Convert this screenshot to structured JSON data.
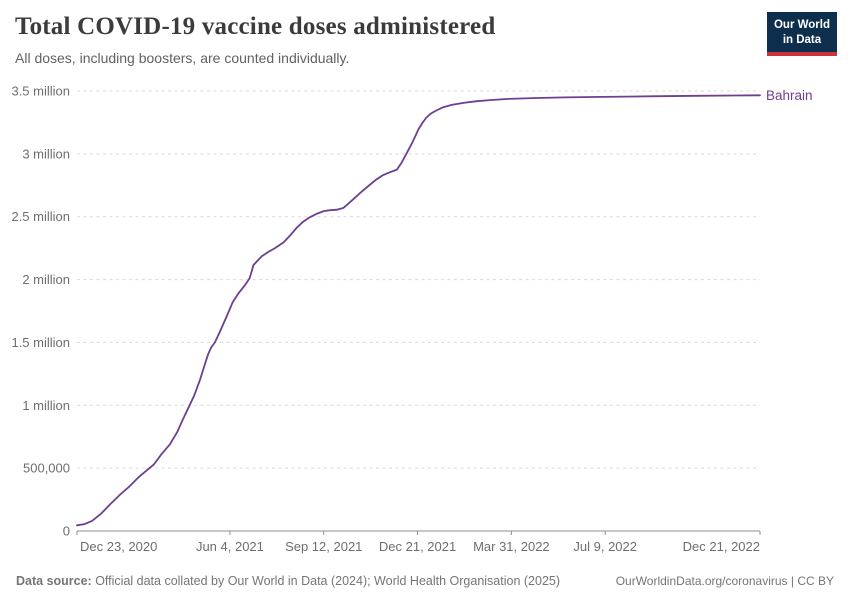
{
  "header": {
    "title": "Total COVID-19 vaccine doses administered",
    "subtitle": "All doses, including boosters, are counted individually."
  },
  "logo": {
    "line1": "Our World",
    "line2": "in Data",
    "bg_color": "#0e2e4e",
    "accent_color": "#cd3140"
  },
  "footer": {
    "source_label": "Data source:",
    "source_text": " Official data collated by Our World in Data (2024); World Health Organisation (2025)",
    "link_text": "OurWorldinData.org/coronavirus | CC BY"
  },
  "chart_data": {
    "type": "line",
    "title": "Total COVID-19 vaccine doses administered",
    "subtitle": "All doses, including boosters, are counted individually.",
    "legend_position": "end-of-line",
    "grid": "dashed-horizontal",
    "line_color": "#6d3e91",
    "axis_text_color": "#6e6e6e",
    "grid_color": "#d9d9d9",
    "axis_line_color": "#8f8f8f",
    "x_axis": {
      "unit": "days since 2020-12-23",
      "range": [
        0,
        728
      ],
      "ticks": [
        {
          "day": 0,
          "label": "Dec 23, 2020"
        },
        {
          "day": 163,
          "label": "Jun 4, 2021"
        },
        {
          "day": 263,
          "label": "Sep 12, 2021"
        },
        {
          "day": 363,
          "label": "Dec 21, 2021"
        },
        {
          "day": 463,
          "label": "Mar 31, 2022"
        },
        {
          "day": 563,
          "label": "Jul 9, 2022"
        },
        {
          "day": 728,
          "label": "Dec 21, 2022"
        }
      ]
    },
    "y_axis": {
      "range": [
        0,
        3500000
      ],
      "ticks": [
        {
          "value": 0,
          "label": "0"
        },
        {
          "value": 500000,
          "label": "500,000"
        },
        {
          "value": 1000000,
          "label": "1 million"
        },
        {
          "value": 1500000,
          "label": "1.5 million"
        },
        {
          "value": 2000000,
          "label": "2 million"
        },
        {
          "value": 2500000,
          "label": "2.5 million"
        },
        {
          "value": 3000000,
          "label": "3 million"
        },
        {
          "value": 3500000,
          "label": "3.5 million"
        }
      ]
    },
    "series": [
      {
        "name": "Bahrain",
        "points": [
          [
            0,
            45000
          ],
          [
            8,
            55000
          ],
          [
            16,
            80000
          ],
          [
            26,
            140000
          ],
          [
            35,
            210000
          ],
          [
            46,
            290000
          ],
          [
            56,
            355000
          ],
          [
            66,
            430000
          ],
          [
            74,
            480000
          ],
          [
            78,
            505000
          ],
          [
            82,
            530000
          ],
          [
            90,
            610000
          ],
          [
            99,
            690000
          ],
          [
            107,
            790000
          ],
          [
            113,
            890000
          ],
          [
            120,
            1000000
          ],
          [
            125,
            1080000
          ],
          [
            131,
            1200000
          ],
          [
            136,
            1320000
          ],
          [
            140,
            1410000
          ],
          [
            143,
            1460000
          ],
          [
            147,
            1500000
          ],
          [
            152,
            1580000
          ],
          [
            160,
            1715000
          ],
          [
            166,
            1820000
          ],
          [
            172,
            1890000
          ],
          [
            179,
            1955000
          ],
          [
            184,
            2010000
          ],
          [
            186,
            2060000
          ],
          [
            188,
            2115000
          ],
          [
            193,
            2155000
          ],
          [
            197,
            2185000
          ],
          [
            204,
            2220000
          ],
          [
            211,
            2250000
          ],
          [
            220,
            2295000
          ],
          [
            227,
            2350000
          ],
          [
            234,
            2410000
          ],
          [
            241,
            2460000
          ],
          [
            248,
            2495000
          ],
          [
            256,
            2525000
          ],
          [
            263,
            2545000
          ],
          [
            270,
            2552000
          ],
          [
            277,
            2556000
          ],
          [
            284,
            2570000
          ],
          [
            293,
            2630000
          ],
          [
            302,
            2690000
          ],
          [
            310,
            2740000
          ],
          [
            318,
            2790000
          ],
          [
            326,
            2830000
          ],
          [
            334,
            2855000
          ],
          [
            341,
            2875000
          ],
          [
            346,
            2930000
          ],
          [
            351,
            3000000
          ],
          [
            356,
            3070000
          ],
          [
            360,
            3130000
          ],
          [
            364,
            3195000
          ],
          [
            368,
            3245000
          ],
          [
            372,
            3285000
          ],
          [
            377,
            3320000
          ],
          [
            383,
            3345000
          ],
          [
            390,
            3370000
          ],
          [
            400,
            3390000
          ],
          [
            412,
            3405000
          ],
          [
            425,
            3418000
          ],
          [
            440,
            3428000
          ],
          [
            460,
            3437000
          ],
          [
            490,
            3444000
          ],
          [
            520,
            3449000
          ],
          [
            560,
            3453000
          ],
          [
            610,
            3458000
          ],
          [
            660,
            3462000
          ],
          [
            700,
            3464000
          ],
          [
            728,
            3466000
          ]
        ]
      }
    ]
  }
}
